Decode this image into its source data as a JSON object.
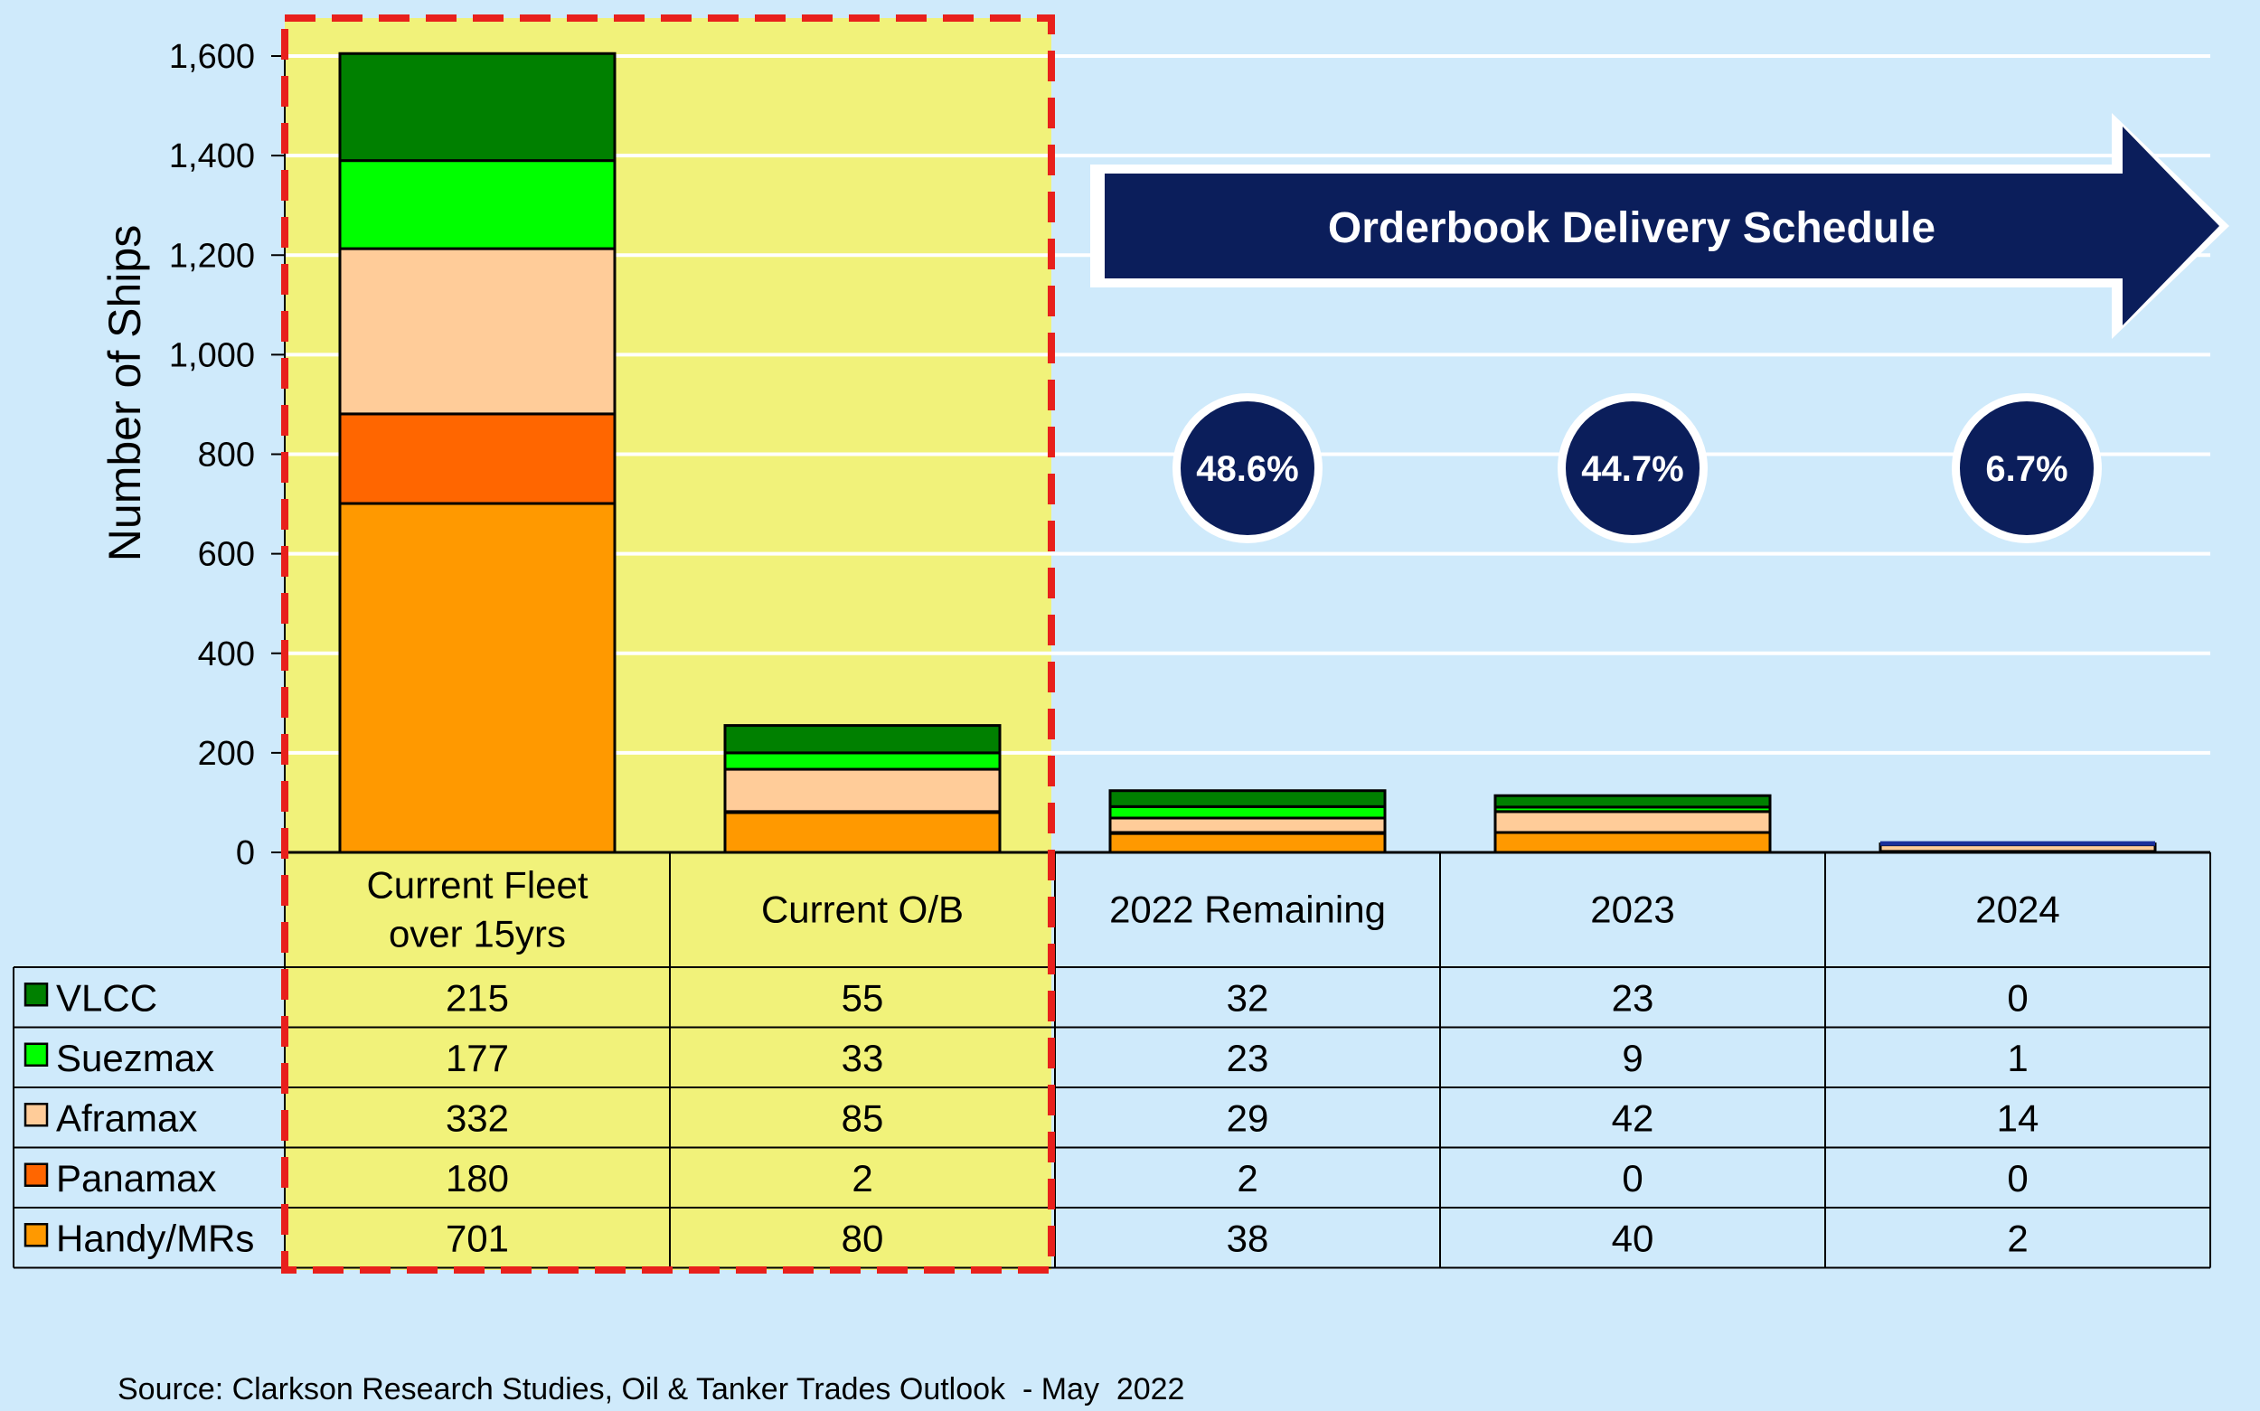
{
  "chart_data": {
    "type": "bar",
    "stacked": true,
    "ylabel": "Number of Ships",
    "ylim": [
      0,
      1600
    ],
    "yticks": [
      "0",
      "200",
      "400",
      "600",
      "800",
      "1,000",
      "1,200",
      "1,400",
      "1,600"
    ],
    "grid": true,
    "categories": [
      "Current Fleet\nover 15yrs",
      "Current O/B",
      "2022 Remaining",
      "2023",
      "2024"
    ],
    "series": [
      {
        "name": "Handy/MRs",
        "color": "#ff9900",
        "values": [
          701,
          80,
          38,
          40,
          2
        ]
      },
      {
        "name": "Panamax",
        "color": "#ff6600",
        "values": [
          180,
          2,
          2,
          0,
          0
        ]
      },
      {
        "name": "Aframax",
        "color": "#ffcc99",
        "values": [
          332,
          85,
          29,
          42,
          14
        ]
      },
      {
        "name": "Suezmax",
        "color": "#00ff00",
        "values": [
          177,
          33,
          23,
          9,
          1
        ]
      },
      {
        "name": "VLCC",
        "color": "#008000",
        "values": [
          215,
          55,
          32,
          23,
          0
        ]
      }
    ],
    "table_order": [
      "VLCC",
      "Suezmax",
      "Aframax",
      "Panamax",
      "Handy/MRs"
    ],
    "annotations": {
      "arrow": "Orderbook Delivery Schedule",
      "percentages": [
        "48.6%",
        "44.7%",
        "6.7%"
      ],
      "highlight": "Current Fleet over 15yrs and Current O/B (dashed red box)"
    },
    "source": "Source: Clarkson Research Studies, Oil & Tanker Trades Outlook  - May  2022"
  },
  "colors": {
    "background": "#cfeafb",
    "highlight_fill": "#f1f27a",
    "highlight_border": "#e8201c",
    "navy": "#0b1e5b",
    "gridline": "#ffffff"
  }
}
